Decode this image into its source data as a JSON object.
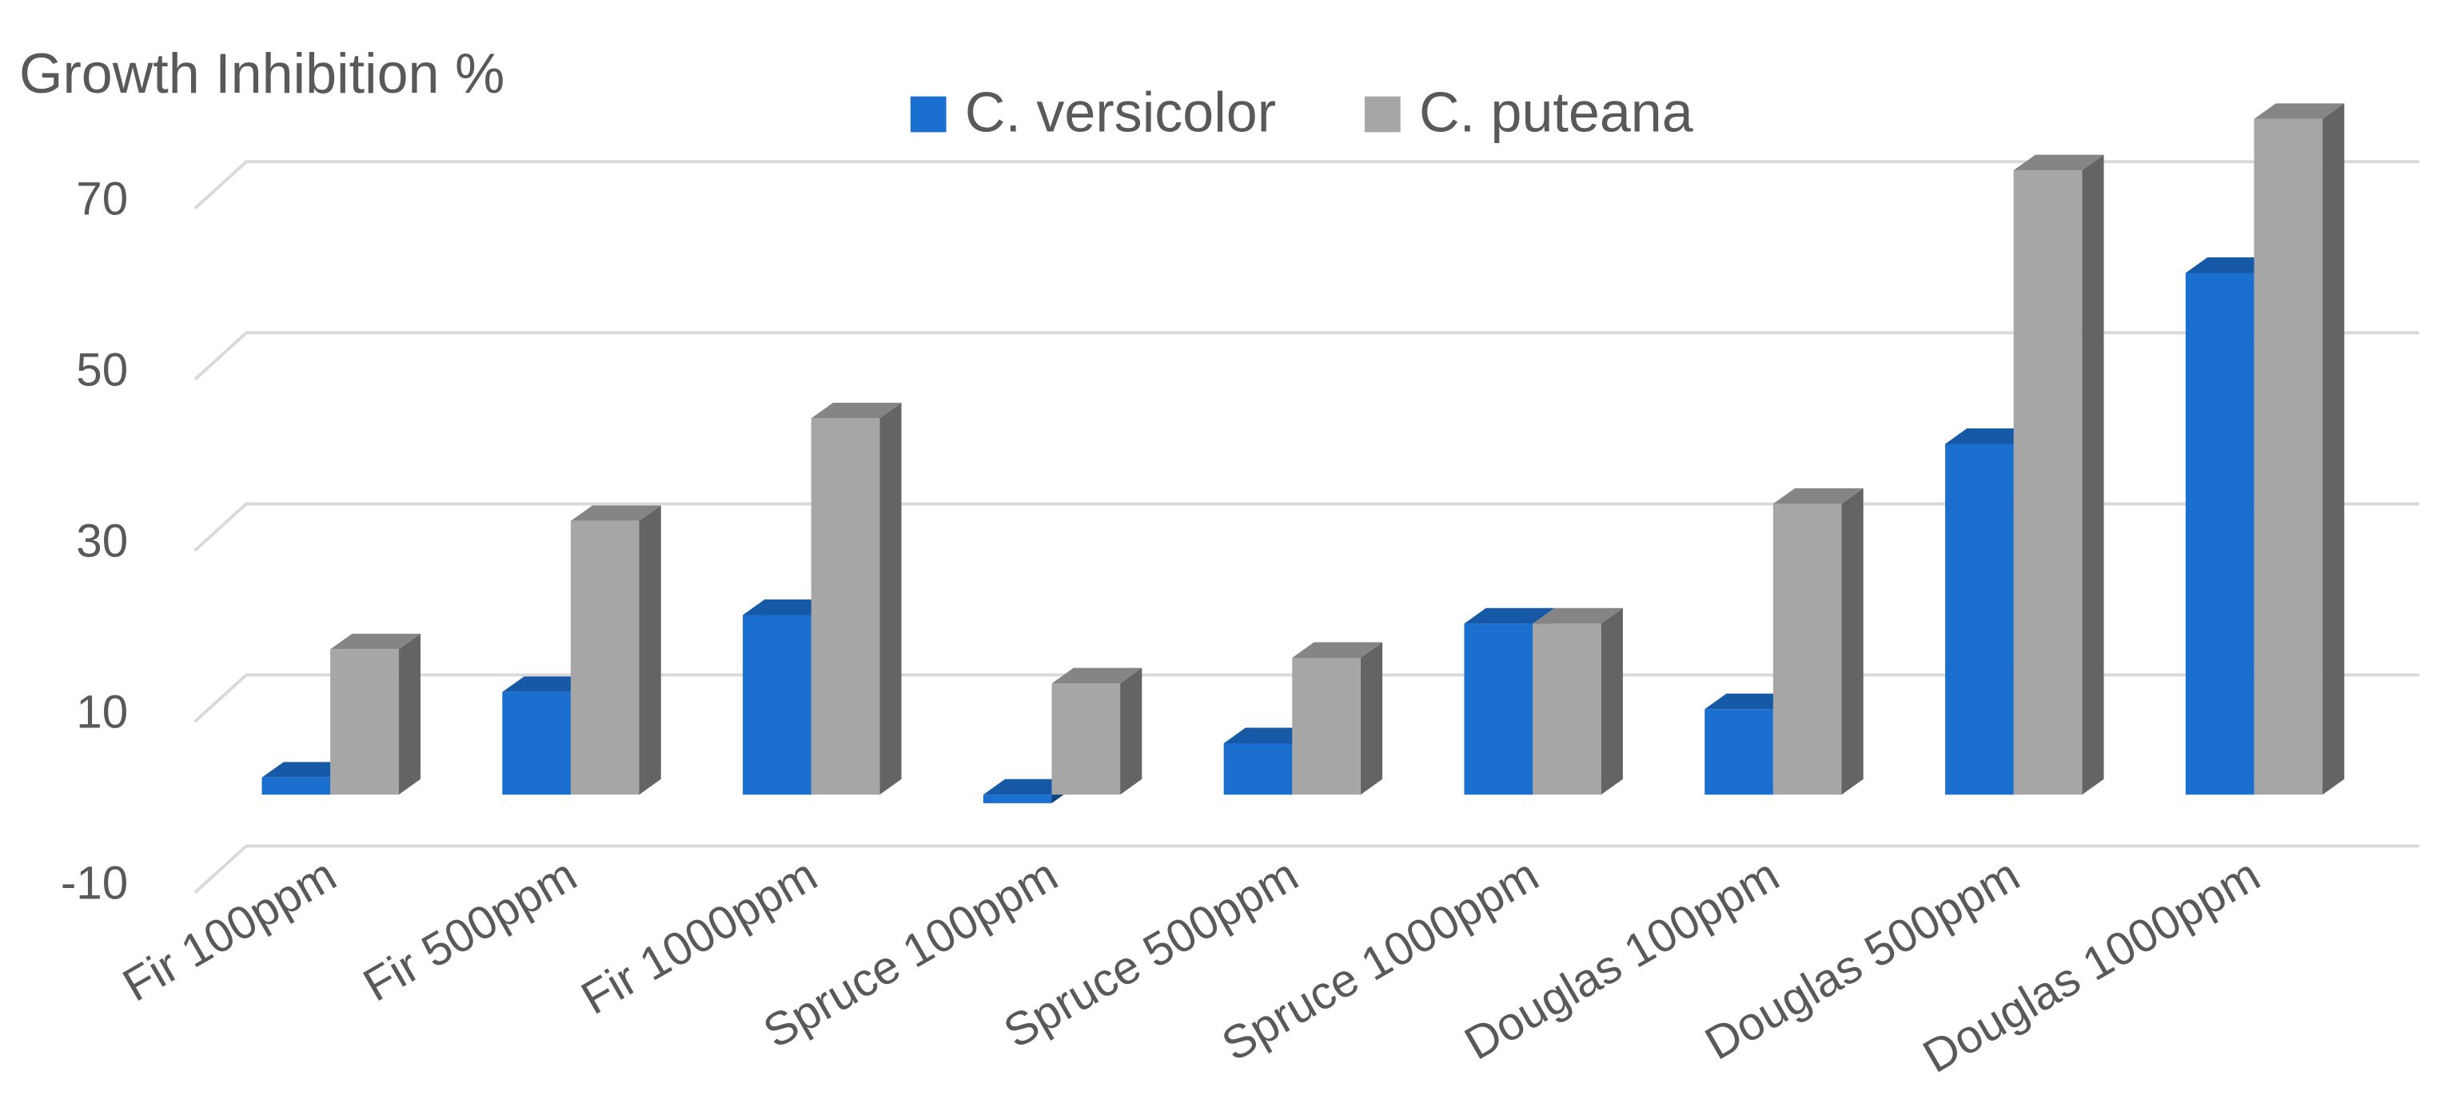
{
  "chart_data": {
    "type": "bar3d",
    "y_axis_label": "Growth Inhibition %",
    "categories": [
      "Fir 100ppm",
      "Fir 500ppm",
      "Fir 1000ppm",
      "Spruce 100ppm",
      "Spruce 500ppm",
      "Spruce 1000ppm",
      "Douglas 100ppm",
      "Douglas 500ppm",
      "Douglas 1000ppm"
    ],
    "series": [
      {
        "name": "C. versicolor",
        "color": "#1b6fcf",
        "values": [
          2,
          12,
          21,
          -1,
          6,
          20,
          10,
          41,
          61
        ]
      },
      {
        "name": "C. puteana",
        "color": "#a6a6a6",
        "values": [
          17,
          32,
          44,
          13,
          16,
          20,
          34,
          73,
          79
        ]
      }
    ],
    "ylim": [
      -10,
      80
    ],
    "yticks": [
      -10,
      10,
      30,
      50,
      70
    ],
    "grid": true
  }
}
